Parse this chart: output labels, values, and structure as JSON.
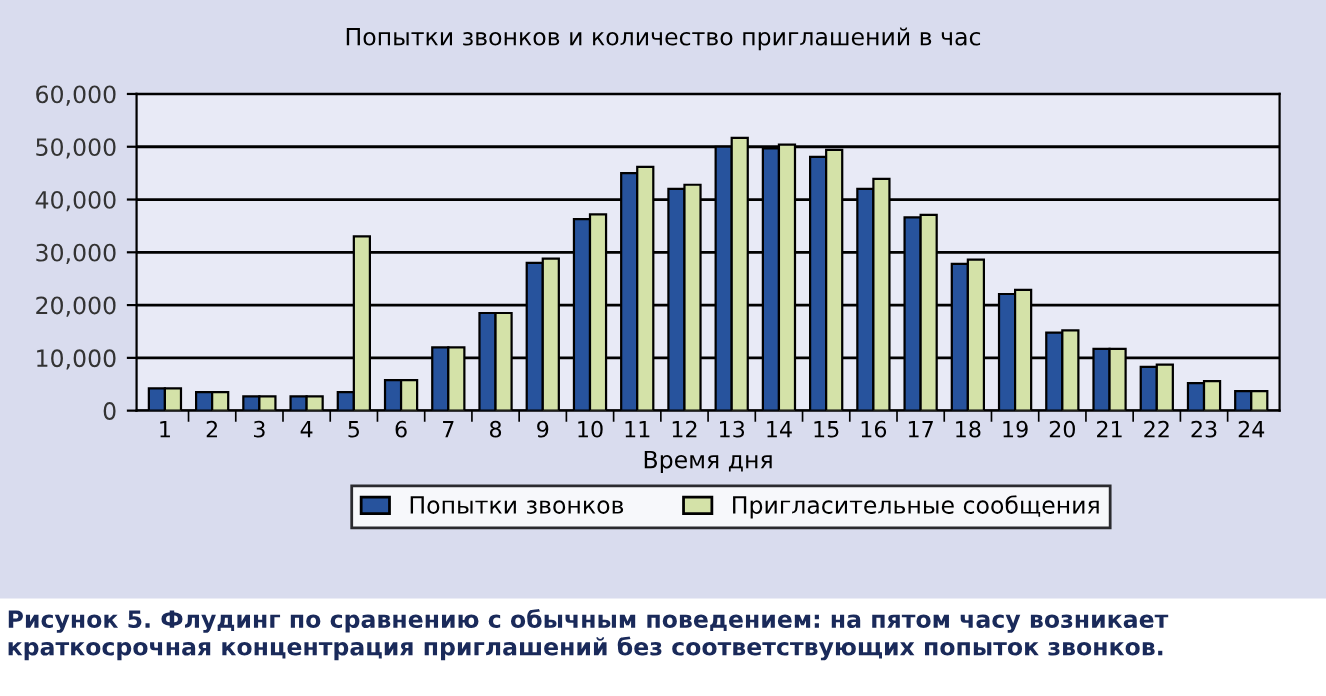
{
  "chart_data": {
    "type": "bar",
    "title": "Попытки звонков и количество приглашений в час",
    "xlabel": "Время дня",
    "categories": [
      "1",
      "2",
      "3",
      "4",
      "5",
      "6",
      "7",
      "8",
      "9",
      "10",
      "11",
      "12",
      "13",
      "14",
      "15",
      "16",
      "17",
      "18",
      "19",
      "20",
      "21",
      "22",
      "23",
      "24"
    ],
    "series": [
      {
        "name": "Попытки звонков",
        "color": "#27539d",
        "values": [
          4200,
          3500,
          2700,
          2700,
          3500,
          5800,
          12000,
          18500,
          28000,
          36300,
          45000,
          42000,
          50000,
          49700,
          48100,
          42000,
          36600,
          27800,
          22100,
          14800,
          11700,
          8300,
          5200,
          3700
        ]
      },
      {
        "name": "Пригласительные сообщения",
        "color": "#d4e2a8",
        "values": [
          4200,
          3500,
          2700,
          2700,
          33000,
          5800,
          12000,
          18500,
          28800,
          37200,
          46200,
          42800,
          51700,
          50400,
          49400,
          43900,
          37100,
          28600,
          22900,
          15200,
          11700,
          8700,
          5600,
          3700
        ]
      }
    ],
    "ylim": [
      0,
      60000
    ],
    "yticks": [
      {
        "value": 0,
        "label": "0"
      },
      {
        "value": 10000,
        "label": "10,000"
      },
      {
        "value": 20000,
        "label": "20,000"
      },
      {
        "value": 30000,
        "label": "30,000"
      },
      {
        "value": 40000,
        "label": "40,000"
      },
      {
        "value": 50000,
        "label": "50,000"
      },
      {
        "value": 60000,
        "label": "60,000"
      }
    ],
    "grid": "y",
    "legend": "bottom",
    "annotations": [
      "Рисунок 5. Флудинг по сравнению с обычным поведением: на пятом часу возникает краткосрочная концентрация приглашений без соответствующих попыток звонков."
    ]
  }
}
